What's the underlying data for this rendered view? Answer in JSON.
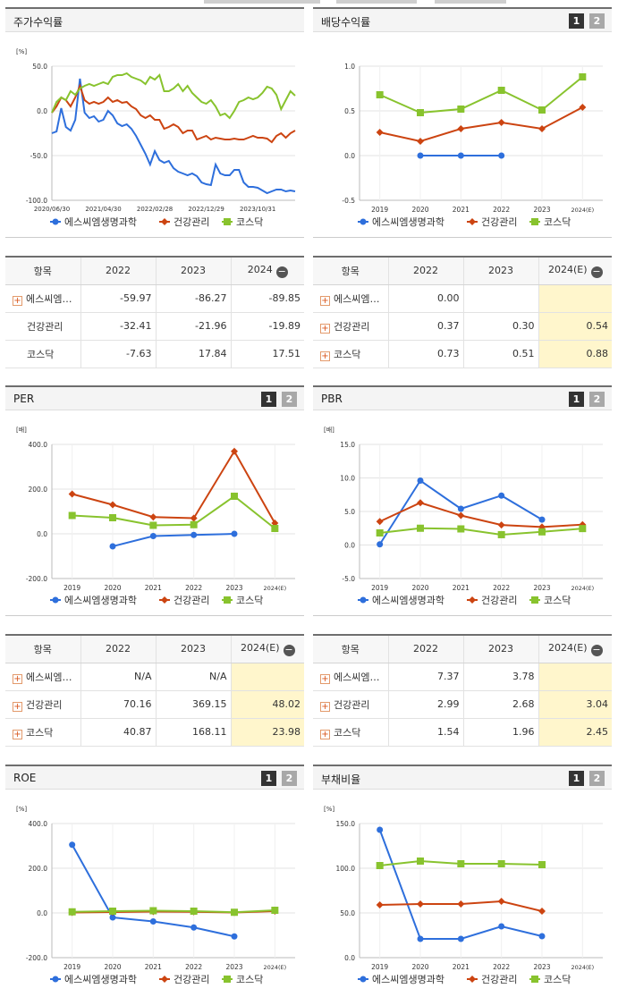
{
  "colors": {
    "company": "#2e6fdc",
    "health": "#cc4411",
    "kosdaq": "#88c32e"
  },
  "legend": [
    "에스씨엠생명과학",
    "건강관리",
    "코스닥"
  ],
  "toggles": [
    "1",
    "2"
  ],
  "panels": {
    "return": {
      "title": "주가수익률"
    },
    "dividend": {
      "title": "배당수익률"
    },
    "per": {
      "title": "PER"
    },
    "pbr": {
      "title": "PBR"
    },
    "roe": {
      "title": "ROE"
    },
    "debt": {
      "title": "부채비율"
    }
  },
  "tables": {
    "return": {
      "headers": [
        "항목",
        "2022",
        "2023",
        "2024"
      ],
      "rows": [
        {
          "name": "에스씨엠…",
          "plus": true,
          "values": [
            "-59.97",
            "-86.27",
            "-89.85"
          ]
        },
        {
          "name": "건강관리",
          "plus": false,
          "values": [
            "-32.41",
            "-21.96",
            "-19.89"
          ]
        },
        {
          "name": "코스닥",
          "plus": false,
          "values": [
            "-7.63",
            "17.84",
            "17.51"
          ]
        }
      ]
    },
    "dividend": {
      "headers": [
        "항목",
        "2022",
        "2023",
        "2024(E)"
      ],
      "rows": [
        {
          "name": "에스씨엠…",
          "plus": true,
          "values": [
            "0.00",
            "",
            ""
          ]
        },
        {
          "name": "건강관리",
          "plus": true,
          "values": [
            "0.37",
            "0.30",
            "0.54"
          ]
        },
        {
          "name": "코스닥",
          "plus": true,
          "values": [
            "0.73",
            "0.51",
            "0.88"
          ]
        }
      ]
    },
    "per": {
      "headers": [
        "항목",
        "2022",
        "2023",
        "2024(E)"
      ],
      "rows": [
        {
          "name": "에스씨엠…",
          "plus": true,
          "values": [
            "N/A",
            "N/A",
            ""
          ]
        },
        {
          "name": "건강관리",
          "plus": true,
          "values": [
            "70.16",
            "369.15",
            "48.02"
          ]
        },
        {
          "name": "코스닥",
          "plus": true,
          "values": [
            "40.87",
            "168.11",
            "23.98"
          ]
        }
      ]
    },
    "pbr": {
      "headers": [
        "항목",
        "2022",
        "2023",
        "2024(E)"
      ],
      "rows": [
        {
          "name": "에스씨엠…",
          "plus": true,
          "values": [
            "7.37",
            "3.78",
            ""
          ]
        },
        {
          "name": "건강관리",
          "plus": true,
          "values": [
            "2.99",
            "2.68",
            "3.04"
          ]
        },
        {
          "name": "코스닥",
          "plus": true,
          "values": [
            "1.54",
            "1.96",
            "2.45"
          ]
        }
      ]
    }
  },
  "chart_data": [
    {
      "id": "return",
      "type": "line",
      "title": "주가수익률",
      "ylabel": "[%]",
      "ylim": [
        -100,
        50
      ],
      "yticks": [
        "50.0",
        "0.0",
        "-50.0",
        "-100.0"
      ],
      "xticks": [
        "2020/06/30",
        "2021/04/30",
        "2022/02/28",
        "2022/12/29",
        "2023/10/31"
      ],
      "series": [
        {
          "name": "에스씨엠생명과학",
          "values": [
            -25,
            -23,
            3,
            -18,
            -22,
            -10,
            36,
            -2,
            -8,
            -6,
            -12,
            -10,
            0,
            -5,
            -14,
            -17,
            -15,
            -20,
            -28,
            -38,
            -48,
            -60,
            -45,
            -55,
            -58,
            -56,
            -64,
            -68,
            -70,
            -72,
            -70,
            -73,
            -80,
            -82,
            -83,
            -60,
            -70,
            -72,
            -72,
            -66,
            -66,
            -80,
            -85,
            -85,
            -86,
            -89,
            -92,
            -90,
            -88,
            -88,
            -90,
            -89,
            -90
          ]
        },
        {
          "name": "건강관리",
          "values": [
            -2,
            5,
            15,
            12,
            5,
            15,
            28,
            12,
            8,
            10,
            8,
            10,
            15,
            10,
            12,
            9,
            10,
            5,
            2,
            -5,
            -8,
            -5,
            -10,
            -10,
            -20,
            -18,
            -15,
            -18,
            -25,
            -22,
            -22,
            -32,
            -30,
            -28,
            -32,
            -30,
            -31,
            -32,
            -32,
            -31,
            -32,
            -32,
            -30,
            -28,
            -30,
            -30,
            -31,
            -35,
            -28,
            -25,
            -30,
            -25,
            -22
          ]
        },
        {
          "name": "코스닥",
          "values": [
            -2,
            10,
            15,
            12,
            22,
            18,
            25,
            28,
            30,
            28,
            30,
            32,
            30,
            38,
            40,
            40,
            42,
            38,
            36,
            34,
            30,
            38,
            35,
            40,
            22,
            22,
            25,
            30,
            22,
            28,
            20,
            15,
            10,
            8,
            12,
            5,
            -5,
            -3,
            -8,
            0,
            10,
            12,
            15,
            13,
            15,
            20,
            27,
            25,
            18,
            2,
            12,
            22,
            17
          ]
        }
      ]
    },
    {
      "id": "dividend",
      "type": "line",
      "title": "배당수익률",
      "ylim": [
        -0.5,
        1.0
      ],
      "yticks": [
        "1.0",
        "0.5",
        "0.0",
        "-0.5"
      ],
      "categories": [
        "2019",
        "2020",
        "2021",
        "2022",
        "2023",
        "2024(E)"
      ],
      "series": [
        {
          "name": "에스씨엠생명과학",
          "values": [
            null,
            0.0,
            0.0,
            0.0,
            null,
            null
          ]
        },
        {
          "name": "건강관리",
          "values": [
            0.26,
            0.16,
            0.3,
            0.37,
            0.3,
            0.54
          ]
        },
        {
          "name": "코스닥",
          "values": [
            0.68,
            0.48,
            0.52,
            0.73,
            0.51,
            0.88
          ]
        }
      ]
    },
    {
      "id": "per",
      "type": "line",
      "title": "PER",
      "ylabel": "[배]",
      "ylim": [
        -200,
        400
      ],
      "yticks": [
        "400.0",
        "200.0",
        "0.0",
        "-200.0"
      ],
      "categories": [
        "2019",
        "2020",
        "2021",
        "2022",
        "2023",
        "2024(E)"
      ],
      "series": [
        {
          "name": "에스씨엠생명과학",
          "values": [
            null,
            -56,
            -10,
            -5,
            0,
            null
          ]
        },
        {
          "name": "건강관리",
          "values": [
            178,
            130,
            75,
            70.16,
            369.15,
            48.02
          ]
        },
        {
          "name": "코스닥",
          "values": [
            82,
            72,
            38,
            40.87,
            168.11,
            23.98
          ]
        }
      ]
    },
    {
      "id": "pbr",
      "type": "line",
      "title": "PBR",
      "ylabel": "[배]",
      "ylim": [
        -5,
        15
      ],
      "yticks": [
        "15.0",
        "10.0",
        "5.0",
        "0.0",
        "-5.0"
      ],
      "categories": [
        "2019",
        "2020",
        "2021",
        "2022",
        "2023",
        "2024(E)"
      ],
      "series": [
        {
          "name": "에스씨엠생명과학",
          "values": [
            0.1,
            9.6,
            5.4,
            7.37,
            3.78,
            null
          ]
        },
        {
          "name": "건강관리",
          "values": [
            3.5,
            6.3,
            4.4,
            2.99,
            2.68,
            3.04
          ]
        },
        {
          "name": "코스닥",
          "values": [
            1.8,
            2.5,
            2.4,
            1.54,
            1.96,
            2.45
          ]
        }
      ]
    },
    {
      "id": "roe",
      "type": "line",
      "title": "ROE",
      "ylabel": "[%]",
      "ylim": [
        -200,
        400
      ],
      "yticks": [
        "400.0",
        "200.0",
        "0.0",
        "-200.0"
      ],
      "categories": [
        "2019",
        "2020",
        "2021",
        "2022",
        "2023",
        "2024(E)"
      ],
      "series": [
        {
          "name": "에스씨엠생명과학",
          "values": [
            305,
            -20,
            -38,
            -65,
            -105,
            null
          ]
        },
        {
          "name": "건강관리",
          "values": [
            2,
            4,
            6,
            5,
            2,
            8
          ]
        },
        {
          "name": "코스닥",
          "values": [
            5,
            8,
            10,
            8,
            3,
            12
          ]
        }
      ]
    },
    {
      "id": "debt",
      "type": "line",
      "title": "부채비율",
      "ylabel": "[%]",
      "ylim": [
        0,
        150
      ],
      "yticks": [
        "150.0",
        "100.0",
        "50.0",
        "0.0"
      ],
      "categories": [
        "2019",
        "2020",
        "2021",
        "2022",
        "2023",
        "2024(E)"
      ],
      "series": [
        {
          "name": "에스씨엠생명과학",
          "values": [
            143,
            21,
            21,
            35,
            24,
            null
          ]
        },
        {
          "name": "건강관리",
          "values": [
            59,
            60,
            60,
            63,
            52,
            null
          ]
        },
        {
          "name": "코스닥",
          "values": [
            103,
            108,
            105,
            105,
            104,
            null
          ]
        }
      ]
    }
  ]
}
